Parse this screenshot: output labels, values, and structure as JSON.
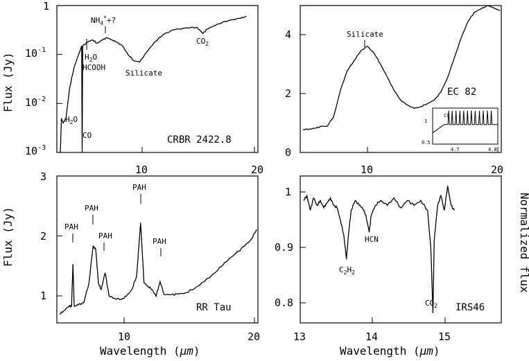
{
  "chart_data": [
    {
      "id": "tl",
      "type": "line",
      "name": "CRBR 2422.8",
      "ylabel": "Flux (Jy)",
      "yscale": "log",
      "xlim": [
        2.5,
        20
      ],
      "ylim": [
        0.001,
        1
      ],
      "xticks_shown": [
        10,
        20
      ],
      "yticks": [
        "10⁻³",
        "10⁻²",
        "10⁻¹",
        "1"
      ],
      "annotations": [
        "NH4⁺+?",
        "H2O",
        "HCOOH",
        "Silicate",
        "CO2",
        "H2O",
        "CO"
      ],
      "points": [
        [
          2.8,
          0.001
        ],
        [
          2.9,
          0.005
        ],
        [
          3.05,
          0.004
        ],
        [
          3.3,
          0.005
        ],
        [
          3.6,
          0.02
        ],
        [
          4.0,
          0.055
        ],
        [
          4.4,
          0.1
        ],
        [
          4.66,
          0.15
        ],
        [
          4.7,
          0.001
        ],
        [
          4.75,
          0.15
        ],
        [
          5.2,
          0.18
        ],
        [
          5.6,
          0.2
        ],
        [
          6.0,
          0.17
        ],
        [
          6.5,
          0.2
        ],
        [
          6.85,
          0.22
        ],
        [
          7.3,
          0.2
        ],
        [
          7.7,
          0.18
        ],
        [
          8.2,
          0.15
        ],
        [
          8.7,
          0.1
        ],
        [
          9.2,
          0.075
        ],
        [
          9.7,
          0.07
        ],
        [
          10.3,
          0.11
        ],
        [
          11.0,
          0.18
        ],
        [
          11.8,
          0.26
        ],
        [
          12.7,
          0.32
        ],
        [
          13.8,
          0.35
        ],
        [
          14.7,
          0.36
        ],
        [
          15.2,
          0.27
        ],
        [
          15.6,
          0.33
        ],
        [
          16.5,
          0.42
        ],
        [
          17.5,
          0.5
        ],
        [
          18.5,
          0.55
        ],
        [
          19.0,
          0.6
        ]
      ]
    },
    {
      "id": "tr",
      "type": "line",
      "name": "EC 82",
      "ylim": [
        0,
        4.5
      ],
      "xlim": [
        5,
        20
      ],
      "xticks": [
        10,
        20
      ],
      "yticks": [
        0,
        2,
        4
      ],
      "annotations": [
        "Silicate"
      ],
      "points": [
        [
          5.2,
          0.7
        ],
        [
          5.7,
          0.72
        ],
        [
          6.2,
          0.75
        ],
        [
          6.6,
          0.8
        ],
        [
          7.0,
          0.8
        ],
        [
          7.5,
          1.1
        ],
        [
          8.0,
          1.9
        ],
        [
          8.5,
          2.5
        ],
        [
          9.0,
          2.8
        ],
        [
          9.5,
          3.1
        ],
        [
          10.0,
          3.25
        ],
        [
          10.5,
          3.05
        ],
        [
          11.0,
          2.7
        ],
        [
          11.5,
          2.3
        ],
        [
          12.0,
          1.9
        ],
        [
          12.5,
          1.6
        ],
        [
          13.0,
          1.45
        ],
        [
          13.5,
          1.35
        ],
        [
          14.0,
          1.4
        ],
        [
          14.5,
          1.5
        ],
        [
          15.0,
          1.6
        ],
        [
          15.5,
          1.85
        ],
        [
          16.0,
          2.3
        ],
        [
          16.5,
          2.9
        ],
        [
          17.0,
          3.5
        ],
        [
          17.5,
          4.0
        ],
        [
          18.0,
          4.3
        ],
        [
          18.5,
          4.4
        ],
        [
          19.0,
          4.5
        ],
        [
          19.9,
          4.35
        ]
      ],
      "inset": {
        "label": "CO",
        "ylim": [
          0.5,
          1.2
        ],
        "xlim": [
          4.63,
          4.8
        ],
        "yticks": [
          0.5,
          1
        ],
        "xticks": [
          4.7,
          4.8
        ],
        "baseline": 0.88,
        "line_positions": [
          4.672,
          4.681,
          4.691,
          4.701,
          4.711,
          4.721,
          4.731,
          4.741,
          4.752,
          4.762,
          4.773,
          4.783
        ]
      }
    },
    {
      "id": "bl",
      "type": "line",
      "name": "RR Tau",
      "ylabel": "Flux (Jy)",
      "xlabel": "Wavelength (μm)",
      "xlim": [
        5,
        20
      ],
      "ylim": [
        0.8,
        3
      ],
      "xticks": [
        10,
        20
      ],
      "yticks": [
        1,
        2,
        3
      ],
      "annotations": [
        "PAH",
        "PAH",
        "PAH",
        "PAH",
        "PAH"
      ],
      "points": [
        [
          5.2,
          0.93
        ],
        [
          5.5,
          0.98
        ],
        [
          5.9,
          1.05
        ],
        [
          6.1,
          1.05
        ],
        [
          6.2,
          1.68
        ],
        [
          6.3,
          1.05
        ],
        [
          6.6,
          1.07
        ],
        [
          7.0,
          1.1
        ],
        [
          7.4,
          1.4
        ],
        [
          7.7,
          1.95
        ],
        [
          7.9,
          1.9
        ],
        [
          8.1,
          1.4
        ],
        [
          8.3,
          1.3
        ],
        [
          8.6,
          1.55
        ],
        [
          8.9,
          1.2
        ],
        [
          9.3,
          1.17
        ],
        [
          9.8,
          1.15
        ],
        [
          10.2,
          1.2
        ],
        [
          10.6,
          1.3
        ],
        [
          10.95,
          1.5
        ],
        [
          11.25,
          2.3
        ],
        [
          11.5,
          1.4
        ],
        [
          11.8,
          1.35
        ],
        [
          12.1,
          1.3
        ],
        [
          12.4,
          1.2
        ],
        [
          12.7,
          1.42
        ],
        [
          13.0,
          1.23
        ],
        [
          13.5,
          1.22
        ],
        [
          14.0,
          1.23
        ],
        [
          14.6,
          1.25
        ],
        [
          15.3,
          1.32
        ],
        [
          16.0,
          1.42
        ],
        [
          16.8,
          1.55
        ],
        [
          17.5,
          1.7
        ],
        [
          18.3,
          1.83
        ],
        [
          19.0,
          1.95
        ],
        [
          19.5,
          2.05
        ],
        [
          19.9,
          2.2
        ]
      ]
    },
    {
      "id": "br",
      "type": "line",
      "name": "IRS46",
      "ylabel": "Normalized flux",
      "xlabel": "Wavelength (μm)",
      "xlim": [
        13,
        16
      ],
      "ylim": [
        0.75,
        1.05
      ],
      "xticks": [
        13,
        14,
        15
      ],
      "yticks": [
        0.8,
        0.9,
        1
      ],
      "annotations": [
        "C2H2",
        "HCN",
        "CO2"
      ],
      "points": [
        [
          13.05,
          1.0
        ],
        [
          13.1,
          1.01
        ],
        [
          13.15,
          0.98
        ],
        [
          13.2,
          1.005
        ],
        [
          13.25,
          0.99
        ],
        [
          13.3,
          1.0
        ],
        [
          13.35,
          0.985
        ],
        [
          13.4,
          0.995
        ],
        [
          13.45,
          1.005
        ],
        [
          13.5,
          0.99
        ],
        [
          13.55,
          0.985
        ],
        [
          13.6,
          0.96
        ],
        [
          13.65,
          0.93
        ],
        [
          13.69,
          0.88
        ],
        [
          13.72,
          0.93
        ],
        [
          13.76,
          0.98
        ],
        [
          13.82,
          1.0
        ],
        [
          13.88,
          0.99
        ],
        [
          13.93,
          0.985
        ],
        [
          13.98,
          0.97
        ],
        [
          14.03,
          0.935
        ],
        [
          14.06,
          0.97
        ],
        [
          14.12,
          0.99
        ],
        [
          14.2,
          1.0
        ],
        [
          14.3,
          0.99
        ],
        [
          14.4,
          1.005
        ],
        [
          14.5,
          0.985
        ],
        [
          14.6,
          1.0
        ],
        [
          14.7,
          0.99
        ],
        [
          14.8,
          1.0
        ],
        [
          14.9,
          0.98
        ],
        [
          14.95,
          0.9
        ],
        [
          14.98,
          0.77
        ],
        [
          15.0,
          0.92
        ],
        [
          15.05,
          0.99
        ],
        [
          15.1,
          1.01
        ],
        [
          15.15,
          0.98
        ],
        [
          15.2,
          1.03
        ],
        [
          15.25,
          0.99
        ],
        [
          15.3,
          0.98
        ]
      ]
    }
  ],
  "labels": {
    "tl": {
      "ylabel": "Flux (Jy)",
      "y1": "1",
      "y2": "10",
      "y3": "10",
      "y4": "10",
      "e2": "-1",
      "e3": "-2",
      "e4": "-3",
      "x10": "10",
      "x20": "20",
      "nh": "NH",
      "nh_sub": "4",
      "nh_sup": "+",
      "nh_tail": "+?",
      "h2o": "H",
      "h2o_sub": "2",
      "h2o_tail": "O",
      "hcooh": "HCOOH",
      "silicate": "Silicate",
      "co2": "CO",
      "co2_sub": "2",
      "h2o_low": "H",
      "h2o_low_sub": "2",
      "h2o_low_tail": "O",
      "co": "CO",
      "name": "CRBR 2422.8"
    },
    "tr": {
      "y0": "0",
      "y2": "2",
      "y4": "4",
      "x10": "10",
      "x20": "20",
      "silicate": "Silicate",
      "name": "EC 82",
      "inset_co": "CO",
      "inset_y1": "1",
      "inset_y05": "0.5",
      "inset_x47": "4.7",
      "inset_x48": "4.8"
    },
    "bl": {
      "ylabel": "Flux (Jy)",
      "y1": "1",
      "y2": "2",
      "y3": "3",
      "x10": "10",
      "x20": "20",
      "pah": "PAH",
      "name": "RR Tau",
      "xlabel": "Wavelength (",
      "xlabel_mu": "μm",
      "xlabel_end": ")"
    },
    "br": {
      "ylabel": "Normalized flux",
      "y08": "0.8",
      "y09": "0.9",
      "y1": "1",
      "x13": "13",
      "x14": "14",
      "x15": "15",
      "c2h2": "C",
      "c2h2_s1": "2",
      "c2h2_h": "H",
      "c2h2_s2": "2",
      "hcn": "HCN",
      "co2": "CO",
      "co2_sub": "2",
      "name": "IRS46",
      "xlabel": "Wavelength (",
      "xlabel_mu": "μm",
      "xlabel_end": ")"
    }
  }
}
